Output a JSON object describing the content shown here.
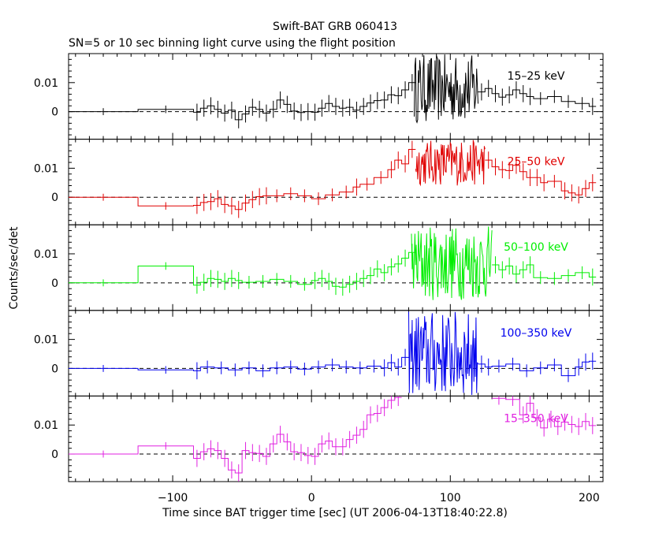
{
  "chart_data": {
    "type": "line",
    "title": "Swift-BAT GRB 060413",
    "subtitle": "SN=5 or 10 sec binning light curve using the flight position",
    "xlabel": "Time since BAT trigger time [sec] (UT 2006-04-13T18:40:22.8)",
    "ylabel": "Counts/sec/det",
    "xlim": [
      -175,
      210
    ],
    "ylim": [
      -0.0095,
      0.02
    ],
    "x_ticks": [
      -100,
      0,
      100,
      200
    ],
    "x_tick_labels": [
      "−100",
      "0",
      "100",
      "200"
    ],
    "y_ticks": [
      0,
      0.01
    ],
    "y_tick_labels": [
      "0",
      "0.01"
    ],
    "grid": false,
    "zero_line": "dashed",
    "panels": [
      {
        "name": "15–25 keV",
        "color": "#000000",
        "steps": [
          [
            -175,
            -125,
            0.0
          ],
          [
            -125,
            -85,
            0.0008
          ],
          [
            -85,
            -80,
            -0.0002
          ],
          [
            -80,
            -75,
            0.0012
          ],
          [
            -75,
            -70,
            0.002
          ],
          [
            -70,
            -65,
            0.0008
          ],
          [
            -65,
            -60,
            -0.0005
          ],
          [
            -60,
            -55,
            0.0005
          ],
          [
            -55,
            -50,
            -0.0028
          ],
          [
            -50,
            -45,
            -0.0008
          ],
          [
            -45,
            -40,
            0.0015
          ],
          [
            -40,
            -35,
            0.0008
          ],
          [
            -35,
            -30,
            -0.0005
          ],
          [
            -30,
            -25,
            0.0008
          ],
          [
            -25,
            -20,
            0.004
          ],
          [
            -20,
            -15,
            0.0025
          ],
          [
            -15,
            -10,
            0.0002
          ],
          [
            -10,
            -5,
            -0.0003
          ],
          [
            -5,
            0,
            0.0
          ],
          [
            0,
            5,
            -0.0002
          ],
          [
            5,
            10,
            0.0012
          ],
          [
            10,
            15,
            0.0028
          ],
          [
            15,
            20,
            0.0018
          ],
          [
            20,
            25,
            0.0012
          ],
          [
            25,
            30,
            0.0015
          ],
          [
            30,
            35,
            0.0005
          ],
          [
            35,
            40,
            0.0018
          ],
          [
            40,
            45,
            0.003
          ],
          [
            45,
            50,
            0.0038
          ],
          [
            50,
            55,
            0.004
          ],
          [
            55,
            60,
            0.0058
          ],
          [
            60,
            65,
            0.0055
          ],
          [
            65,
            70,
            0.0075
          ],
          [
            70,
            75,
            0.01
          ]
        ],
        "steps_after": [
          [
            120,
            125,
            0.0068
          ],
          [
            125,
            130,
            0.008
          ],
          [
            130,
            135,
            0.0062
          ],
          [
            135,
            140,
            0.005
          ],
          [
            140,
            145,
            0.0058
          ],
          [
            145,
            150,
            0.0075
          ],
          [
            150,
            155,
            0.0062
          ],
          [
            155,
            160,
            0.0052
          ],
          [
            160,
            170,
            0.0045
          ],
          [
            170,
            180,
            0.0052
          ],
          [
            180,
            190,
            0.0035
          ],
          [
            190,
            200,
            0.0028
          ],
          [
            200,
            205,
            0.0018
          ]
        ],
        "burst": {
          "start": 74,
          "end": 120,
          "low": -0.004,
          "high": 0.0198
        }
      },
      {
        "name": "25–50 keV",
        "color": "#e00000",
        "steps": [
          [
            -175,
            -125,
            0.0
          ],
          [
            -125,
            -85,
            -0.003
          ],
          [
            -85,
            -80,
            -0.0028
          ],
          [
            -80,
            -75,
            -0.0018
          ],
          [
            -75,
            -70,
            -0.0015
          ],
          [
            -70,
            -65,
            -0.0005
          ],
          [
            -65,
            -60,
            -0.0025
          ],
          [
            -60,
            -55,
            -0.003
          ],
          [
            -55,
            -50,
            -0.0042
          ],
          [
            -50,
            -45,
            -0.002
          ],
          [
            -45,
            -40,
            -0.0008
          ],
          [
            -40,
            -35,
            0.0002
          ],
          [
            -35,
            -30,
            0.0005
          ],
          [
            -30,
            -20,
            0.0005
          ],
          [
            -20,
            -10,
            0.0012
          ],
          [
            -10,
            0,
            0.0005
          ],
          [
            0,
            10,
            -0.0005
          ],
          [
            10,
            20,
            0.0008
          ],
          [
            20,
            30,
            0.0018
          ],
          [
            30,
            35,
            0.0035
          ],
          [
            35,
            45,
            0.0045
          ],
          [
            45,
            55,
            0.0068
          ],
          [
            55,
            60,
            0.0095
          ],
          [
            60,
            65,
            0.0128
          ],
          [
            65,
            70,
            0.0115
          ],
          [
            70,
            75,
            0.0165
          ]
        ],
        "steps_after": [
          [
            125,
            130,
            0.0128
          ],
          [
            130,
            135,
            0.0105
          ],
          [
            135,
            140,
            0.0095
          ],
          [
            140,
            145,
            0.0092
          ],
          [
            145,
            150,
            0.011
          ],
          [
            150,
            155,
            0.0088
          ],
          [
            155,
            160,
            0.0068
          ],
          [
            160,
            165,
            0.0068
          ],
          [
            165,
            170,
            0.005
          ],
          [
            170,
            180,
            0.0055
          ],
          [
            180,
            185,
            0.0022
          ],
          [
            185,
            190,
            0.0015
          ],
          [
            190,
            195,
            0.0008
          ],
          [
            195,
            200,
            0.003
          ],
          [
            200,
            205,
            0.005
          ]
        ],
        "burst": {
          "start": 75,
          "end": 125,
          "low": 0.004,
          "high": 0.0198
        }
      },
      {
        "name": "50–100 keV",
        "color": "#00ee00",
        "steps": [
          [
            -175,
            -125,
            0.0
          ],
          [
            -125,
            -85,
            0.0058
          ],
          [
            -85,
            -80,
            -0.0008
          ],
          [
            -80,
            -75,
            0.0002
          ],
          [
            -75,
            -70,
            0.0015
          ],
          [
            -70,
            -65,
            0.0012
          ],
          [
            -65,
            -60,
            0.0005
          ],
          [
            -60,
            -55,
            0.0015
          ],
          [
            -55,
            -50,
            0.0008
          ],
          [
            -50,
            -40,
            0.0002
          ],
          [
            -40,
            -30,
            0.0005
          ],
          [
            -30,
            -20,
            0.0012
          ],
          [
            -20,
            -10,
            0.0005
          ],
          [
            -10,
            0,
            -0.0005
          ],
          [
            0,
            5,
            0.0008
          ],
          [
            5,
            10,
            0.0015
          ],
          [
            10,
            15,
            0.0005
          ],
          [
            15,
            20,
            -0.0012
          ],
          [
            20,
            25,
            -0.0015
          ],
          [
            25,
            30,
            -0.0005
          ],
          [
            30,
            35,
            0.0005
          ],
          [
            35,
            40,
            0.0015
          ],
          [
            40,
            45,
            0.0025
          ],
          [
            45,
            50,
            0.0048
          ],
          [
            50,
            55,
            0.0035
          ],
          [
            55,
            60,
            0.0055
          ],
          [
            60,
            65,
            0.0065
          ],
          [
            65,
            70,
            0.0085
          ],
          [
            70,
            75,
            0.0105
          ]
        ],
        "steps_after": [
          [
            130,
            135,
            0.0062
          ],
          [
            135,
            140,
            0.0045
          ],
          [
            140,
            145,
            0.0058
          ],
          [
            145,
            150,
            0.003
          ],
          [
            150,
            155,
            0.0045
          ],
          [
            155,
            160,
            0.0062
          ],
          [
            160,
            170,
            0.0018
          ],
          [
            170,
            180,
            0.0015
          ],
          [
            180,
            190,
            0.0025
          ],
          [
            190,
            200,
            0.0035
          ],
          [
            200,
            205,
            0.002
          ]
        ],
        "burst": {
          "start": 72,
          "end": 130,
          "low": -0.006,
          "high": 0.0198
        }
      },
      {
        "name": "100–350 keV",
        "color": "#0000ee",
        "steps": [
          [
            -175,
            -125,
            0.0
          ],
          [
            -125,
            -85,
            -0.0005
          ],
          [
            -85,
            -80,
            -0.0008
          ],
          [
            -80,
            -70,
            0.0005
          ],
          [
            -70,
            -60,
            0.0002
          ],
          [
            -60,
            -50,
            -0.0005
          ],
          [
            -50,
            -40,
            0.0002
          ],
          [
            -40,
            -30,
            -0.0008
          ],
          [
            -30,
            -20,
            0.0002
          ],
          [
            -20,
            -10,
            0.0005
          ],
          [
            -10,
            0,
            -0.0002
          ],
          [
            0,
            10,
            0.0005
          ],
          [
            10,
            20,
            0.0012
          ],
          [
            20,
            30,
            0.0005
          ],
          [
            30,
            40,
            0.0002
          ],
          [
            40,
            50,
            0.0008
          ],
          [
            50,
            55,
            0.0002
          ],
          [
            55,
            60,
            0.002
          ],
          [
            60,
            65,
            0.0005
          ],
          [
            65,
            70,
            0.0038
          ]
        ],
        "steps_after": [
          [
            120,
            125,
            0.0015
          ],
          [
            125,
            130,
            0.0005
          ],
          [
            130,
            140,
            0.0008
          ],
          [
            140,
            150,
            0.0015
          ],
          [
            150,
            160,
            -0.0008
          ],
          [
            160,
            170,
            0.0002
          ],
          [
            170,
            180,
            0.0012
          ],
          [
            180,
            190,
            -0.0025
          ],
          [
            190,
            195,
            0.0005
          ],
          [
            195,
            200,
            0.0022
          ],
          [
            200,
            205,
            0.0025
          ]
        ],
        "burst": {
          "start": 70,
          "end": 120,
          "low": -0.0095,
          "high": 0.0198
        }
      },
      {
        "name": "15–350 keV",
        "color": "#e020e0",
        "steps": [
          [
            -175,
            -125,
            0.0
          ],
          [
            -125,
            -85,
            0.0028
          ],
          [
            -85,
            -80,
            -0.0015
          ],
          [
            -80,
            -75,
            0.0008
          ],
          [
            -75,
            -70,
            0.0018
          ],
          [
            -70,
            -65,
            0.0012
          ],
          [
            -65,
            -60,
            -0.0015
          ],
          [
            -60,
            -55,
            -0.0055
          ],
          [
            -55,
            -50,
            -0.0065
          ],
          [
            -50,
            -45,
            0.0012
          ],
          [
            -45,
            -40,
            0.0005
          ],
          [
            -40,
            -35,
            0.0002
          ],
          [
            -35,
            -30,
            -0.0008
          ],
          [
            -30,
            -25,
            0.0035
          ],
          [
            -25,
            -20,
            0.0068
          ],
          [
            -20,
            -15,
            0.0042
          ],
          [
            -15,
            -10,
            0.0008
          ],
          [
            -10,
            -5,
            0.0005
          ],
          [
            -5,
            0,
            -0.0005
          ],
          [
            0,
            5,
            -0.0008
          ],
          [
            5,
            10,
            0.0035
          ],
          [
            10,
            15,
            0.0045
          ],
          [
            15,
            20,
            0.0025
          ],
          [
            20,
            25,
            0.0025
          ],
          [
            25,
            30,
            0.005
          ],
          [
            30,
            35,
            0.0065
          ],
          [
            35,
            40,
            0.0085
          ],
          [
            40,
            45,
            0.0135
          ],
          [
            45,
            50,
            0.014
          ],
          [
            50,
            55,
            0.016
          ],
          [
            55,
            60,
            0.0185
          ],
          [
            60,
            65,
            0.0195
          ]
        ],
        "steps_after": [
          [
            130,
            140,
            0.0192
          ],
          [
            140,
            150,
            0.0188
          ],
          [
            150,
            155,
            0.0135
          ],
          [
            155,
            160,
            0.0175
          ],
          [
            160,
            165,
            0.0125
          ],
          [
            165,
            170,
            0.009
          ],
          [
            170,
            175,
            0.012
          ],
          [
            175,
            180,
            0.0095
          ],
          [
            180,
            185,
            0.011
          ],
          [
            185,
            190,
            0.0102
          ],
          [
            190,
            195,
            0.0095
          ],
          [
            195,
            200,
            0.0112
          ],
          [
            200,
            205,
            0.0098
          ]
        ],
        "burst": null
      }
    ]
  }
}
